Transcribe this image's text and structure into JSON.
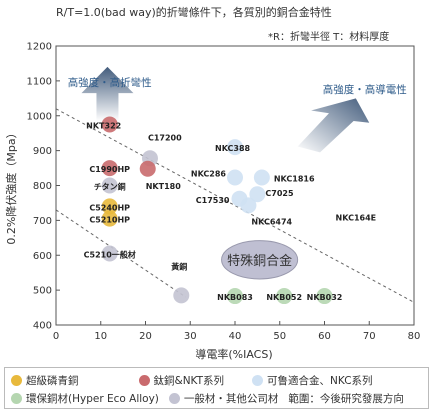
{
  "chart_data": {
    "type": "scatter",
    "title": "R/T=1.0(bad way)的折彎條件下，各質別的銅合金特性",
    "subtitle": "*R：折彎半徑 T：材料厚度",
    "xlabel": "導電率(%IACS)",
    "ylabel": "0.2%降伏強度（Mpa）",
    "xlim": [
      0,
      80
    ],
    "ylim": [
      400,
      1200
    ],
    "xticks": [
      "0",
      "10",
      "20",
      "30",
      "40",
      "50",
      "60",
      "70",
      "80"
    ],
    "yticks": [
      "400",
      "500",
      "600",
      "700",
      "800",
      "900",
      "1000",
      "1100",
      "1200"
    ],
    "grid": false,
    "annotations": {
      "arrow_up": "高強度・高折彎性",
      "arrow_diag": "高強度・高導電性",
      "region": "特殊銅合金"
    },
    "groups": [
      {
        "key": "phos",
        "color": "#e8b93c"
      },
      {
        "key": "ti",
        "color": "#c96a6d"
      },
      {
        "key": "nkc",
        "color": "#cfe1f3"
      },
      {
        "key": "eco",
        "color": "#b5d6b0"
      },
      {
        "key": "general",
        "color": "#c3c3d2"
      }
    ],
    "points": [
      {
        "label": "NKT322",
        "x": 12,
        "y": 975,
        "group": "ti"
      },
      {
        "label": "C1990HP",
        "x": 12,
        "y": 850,
        "group": "ti"
      },
      {
        "label": "チタン銅",
        "x": 12,
        "y": 800,
        "group": "general"
      },
      {
        "label": "C5240HP",
        "x": 12,
        "y": 740,
        "group": "phos"
      },
      {
        "label": "C5210HP",
        "x": 12,
        "y": 705,
        "group": "phos"
      },
      {
        "label": "C5210一般材",
        "x": 12,
        "y": 605,
        "group": "general"
      },
      {
        "label": "C17200",
        "x": 21,
        "y": 878,
        "group": "general"
      },
      {
        "label": "NKT180",
        "x": 20.5,
        "y": 848,
        "group": "ti"
      },
      {
        "label": "NKC388",
        "x": 40,
        "y": 910,
        "group": "nkc"
      },
      {
        "label": "NKC286",
        "x": 40,
        "y": 823,
        "group": "nkc"
      },
      {
        "label": "NKC1816",
        "x": 46,
        "y": 823,
        "group": "nkc"
      },
      {
        "label": "C7025",
        "x": 45,
        "y": 775,
        "group": "nkc"
      },
      {
        "label": "C17530",
        "x": 41,
        "y": 762,
        "group": "nkc"
      },
      {
        "label": "NKC6474",
        "x": 43,
        "y": 743,
        "group": "nkc"
      },
      {
        "label": "黃銅",
        "x": 28,
        "y": 485,
        "group": "general"
      },
      {
        "label": "NKB083",
        "x": 40,
        "y": 483,
        "group": "eco"
      },
      {
        "label": "NKB052",
        "x": 51,
        "y": 483,
        "group": "eco"
      },
      {
        "label": "NKB032",
        "x": 60,
        "y": 483,
        "group": "eco"
      }
    ],
    "text_labels": [
      {
        "text": "NKC164E",
        "x": 67,
        "y": 700
      }
    ]
  },
  "legend": [
    {
      "label": "超級磷青銅",
      "color": "#e8b93c"
    },
    {
      "label": "鈦銅&NKT系列",
      "color": "#c96a6d"
    },
    {
      "label": "可鲁適合金、NKC系列",
      "color": "#cfe1f3"
    },
    {
      "label": "環保銅材(Hyper Eco Alloy)",
      "color": "#b5d6b0"
    },
    {
      "label": "一般材・其他公司材",
      "color": "#c3c3d2"
    },
    {
      "label": "範圍：今後研究發展方向"
    }
  ]
}
